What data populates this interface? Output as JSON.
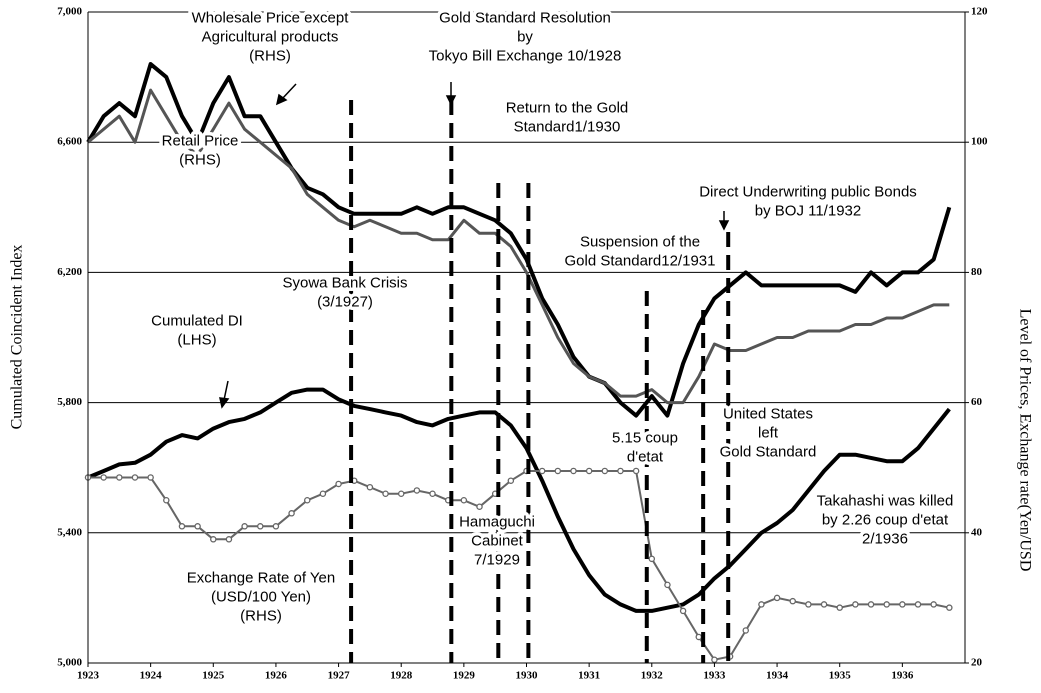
{
  "chart_data": {
    "type": "line",
    "y_label": "Cumulated Coincident Index",
    "y2_label": "Level of Prices, Exchange rate(Yen/USD",
    "xlim": [
      1923,
      1937
    ],
    "xticks": [
      1923,
      1924,
      1925,
      1926,
      1927,
      1928,
      1929,
      1930,
      1931,
      1932,
      1933,
      1934,
      1935,
      1936
    ],
    "ylim": [
      5000,
      7000
    ],
    "yticks": [
      {
        "value": 5000,
        "label": "5,000"
      },
      {
        "value": 5400,
        "label": "5,400"
      },
      {
        "value": 5800,
        "label": "5,800"
      },
      {
        "value": 6200,
        "label": "6,200"
      },
      {
        "value": 6600,
        "label": "6,600"
      },
      {
        "value": 7000,
        "label": "7,000"
      }
    ],
    "y2lim": [
      20,
      120
    ],
    "y2ticks": [
      20,
      40,
      60,
      80,
      100,
      120
    ],
    "grid": true,
    "x": [
      1923,
      1923.25,
      1923.5,
      1923.75,
      1924,
      1924.25,
      1924.5,
      1924.75,
      1925,
      1925.25,
      1925.5,
      1925.75,
      1926,
      1926.25,
      1926.5,
      1926.75,
      1927,
      1927.25,
      1927.5,
      1927.75,
      1928,
      1928.25,
      1928.5,
      1928.75,
      1929,
      1929.25,
      1929.5,
      1929.75,
      1930,
      1930.25,
      1930.5,
      1930.75,
      1931,
      1931.25,
      1931.5,
      1931.75,
      1932,
      1932.25,
      1932.5,
      1932.75,
      1933,
      1933.25,
      1933.5,
      1933.75,
      1934,
      1934.25,
      1934.5,
      1934.75,
      1935,
      1935.25,
      1935.5,
      1935.75,
      1936,
      1936.25,
      1936.5,
      1936.75
    ],
    "series": [
      {
        "color": "#000000",
        "width": 4,
        "values": [
          5570,
          5590,
          5610,
          5615,
          5640,
          5680,
          5700,
          5690,
          5720,
          5740,
          5750,
          5770,
          5800,
          5830,
          5840,
          5840,
          5810,
          5790,
          5780,
          5770,
          5760,
          5740,
          5730,
          5750,
          5760,
          5770,
          5770,
          5730,
          5660,
          5560,
          5450,
          5350,
          5270,
          5210,
          5180,
          5160,
          5160,
          5170,
          5180,
          5210,
          5260,
          5300,
          5350,
          5400,
          5430,
          5470,
          5530,
          5590,
          5640,
          5640,
          5630,
          5620,
          5620,
          5660,
          5720,
          5780
        ]
      },
      {
        "axis": "y2",
        "color": "#000000",
        "width": 4,
        "values": [
          100,
          104,
          106,
          104,
          112,
          110,
          104,
          100,
          106,
          110,
          104,
          104,
          100,
          96,
          93,
          92,
          90,
          89,
          89,
          89,
          89,
          90,
          89,
          90,
          90,
          89,
          88,
          86,
          82,
          76,
          72,
          67,
          64,
          63,
          60,
          58,
          61,
          58,
          66,
          72,
          76,
          78,
          80,
          78,
          78,
          78,
          78,
          78,
          78,
          77,
          80,
          78,
          80,
          80,
          82,
          90
        ]
      },
      {
        "axis": "y2",
        "color": "#555555",
        "width": 3,
        "values": [
          100,
          102,
          104,
          100,
          108,
          104,
          100,
          98,
          102,
          106,
          102,
          100,
          98,
          96,
          92,
          90,
          88,
          87,
          88,
          87,
          86,
          86,
          85,
          85,
          88,
          86,
          86,
          84,
          80,
          75,
          70,
          66,
          64,
          63,
          61,
          61,
          62,
          60,
          60,
          64,
          69,
          68,
          68,
          69,
          70,
          70,
          71,
          71,
          71,
          72,
          72,
          73,
          73,
          74,
          75,
          75
        ]
      },
      {
        "axis": "y2",
        "color": "#666666",
        "width": 2,
        "markers": true,
        "values": [
          48.5,
          48.5,
          48.5,
          48.5,
          48.5,
          45,
          41,
          41,
          39,
          39,
          41,
          41,
          41,
          43,
          45,
          46,
          47.5,
          48,
          47,
          46,
          46,
          46.5,
          46,
          45,
          45,
          44,
          46,
          48,
          49.5,
          49.5,
          49.5,
          49.5,
          49.5,
          49.5,
          49.5,
          49.5,
          36,
          32,
          28,
          24,
          20.5,
          21,
          25,
          29,
          30,
          29.5,
          29,
          29,
          28.5,
          29,
          29,
          29,
          29,
          29,
          29,
          28.5
        ]
      }
    ],
    "event_lines": [
      1927.2,
      1928.8,
      1929.55,
      1930.03,
      1931.92,
      1932.82,
      1933.22
    ],
    "annotations": [
      [
        "Wholesale Price except",
        "Agricultural products",
        "(RHS)"
      ],
      [
        "Retail Price",
        "(RHS)"
      ],
      [
        "Gold Standard Resolution",
        "by",
        "Tokyo Bill Exchange 10/1928"
      ],
      [
        "Return to the Gold",
        "Standard1/1930"
      ],
      [
        "Direct Underwriting public Bonds",
        "by BOJ 11/1932"
      ],
      [
        "Suspension of the",
        "Gold Standard12/1931"
      ],
      [
        "Syowa Bank Crisis",
        "(3/1927)"
      ],
      [
        "Cumulated DI",
        "(LHS)"
      ],
      [
        "5.15 coup",
        "d'etat"
      ],
      [
        "United States",
        "left",
        "Gold Standard"
      ],
      [
        "Takahashi was killed",
        "by 2.26 coup d'etat",
        "2/1936"
      ],
      [
        "Hamaguchi",
        "Cabinet",
        "7/1929"
      ],
      [
        "Exchange Rate of Yen",
        "(USD/100 Yen)",
        "(RHS)"
      ]
    ]
  }
}
